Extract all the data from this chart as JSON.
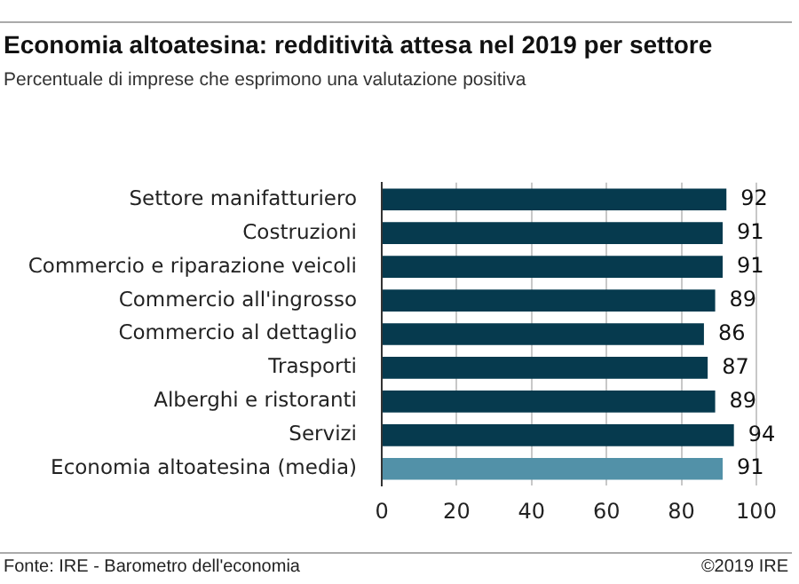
{
  "chart_data": {
    "type": "bar",
    "orientation": "horizontal",
    "title": "Economia altoatesina: redditività attesa nel 2019 per settore",
    "subtitle": "Percentuale di imprese che esprimono una valutazione positiva",
    "categories": [
      "Settore manifatturiero",
      "Costruzioni",
      "Commercio e riparazione veicoli",
      "Commercio all'ingrosso",
      "Commercio al dettaglio",
      "Trasporti",
      "Alberghi e ristoranti",
      "Servizi",
      "Economia altoatesina (media)"
    ],
    "values": [
      92,
      91,
      91,
      89,
      86,
      87,
      89,
      94,
      91
    ],
    "colors": [
      "#063a4e",
      "#063a4e",
      "#063a4e",
      "#063a4e",
      "#063a4e",
      "#063a4e",
      "#063a4e",
      "#063a4e",
      "#5291a8"
    ],
    "xlim": [
      0,
      100
    ],
    "xticks": [
      0,
      20,
      40,
      60,
      80,
      100
    ],
    "grid": "x",
    "data_labels": true,
    "legend": false,
    "annotations": [
      "Fonte: IRE - Barometro dell'economia",
      "©2019 IRE"
    ]
  }
}
